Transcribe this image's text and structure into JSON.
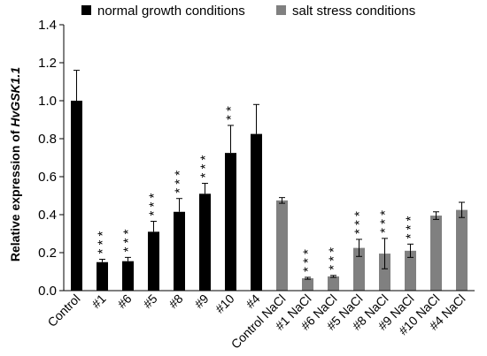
{
  "chart_data": {
    "type": "bar",
    "title": "",
    "xlabel": "",
    "ylabel_prefix": "Relative expression of ",
    "ylabel_gene": "HvGSK1.1",
    "ylim": [
      0,
      1.4
    ],
    "yticks": [
      "0.0",
      "0.2",
      "0.4",
      "0.6",
      "0.8",
      "1.0",
      "1.2",
      "1.4"
    ],
    "grid": false,
    "legend_position": "top",
    "legend": [
      {
        "label": "normal growth conditions",
        "color": "#000000"
      },
      {
        "label": "salt stress conditions",
        "color": "#808080"
      }
    ],
    "categories": [
      "Control",
      "#1",
      "#6",
      "#5",
      "#8",
      "#9",
      "#10",
      "#4",
      "Control NaCl",
      "#1 NaCl",
      "#6 NaCl",
      "#5 NaCl",
      "#8 NaCl",
      "#9 NaCl",
      "#10 NaCl",
      "#4 NaCl"
    ],
    "values": [
      1.0,
      0.15,
      0.155,
      0.31,
      0.415,
      0.51,
      0.725,
      0.825,
      0.475,
      0.065,
      0.075,
      0.225,
      0.195,
      0.21,
      0.395,
      0.425
    ],
    "errors": [
      0.16,
      0.015,
      0.02,
      0.055,
      0.07,
      0.055,
      0.145,
      0.155,
      0.015,
      0.005,
      0.005,
      0.045,
      0.08,
      0.035,
      0.02,
      0.04
    ],
    "series_index": [
      0,
      0,
      0,
      0,
      0,
      0,
      0,
      0,
      1,
      1,
      1,
      1,
      1,
      1,
      1,
      1
    ],
    "significance": [
      "",
      "***",
      "***",
      "***",
      "***",
      "***",
      "**",
      "",
      "",
      "***",
      "***",
      "***",
      "***",
      "***",
      "",
      ""
    ]
  }
}
